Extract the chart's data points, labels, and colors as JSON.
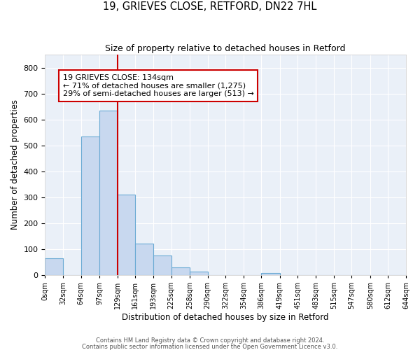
{
  "title": "19, GRIEVES CLOSE, RETFORD, DN22 7HL",
  "subtitle": "Size of property relative to detached houses in Retford",
  "xlabel": "Distribution of detached houses by size in Retford",
  "ylabel": "Number of detached properties",
  "bar_color": "#c8d8ef",
  "bar_edge_color": "#6aaad4",
  "annotation_line_color": "#cc0000",
  "annotation_box_color": "#cc0000",
  "background_color": "#eaf0f8",
  "grid_color": "#ffffff",
  "annotation_text": "19 GRIEVES CLOSE: 134sqm\n← 71% of detached houses are smaller (1,275)\n29% of semi-detached houses are larger (513) →",
  "footer_text1": "Contains HM Land Registry data © Crown copyright and database right 2024.",
  "footer_text2": "Contains public sector information licensed under the Open Government Licence v3.0.",
  "bin_labels": [
    "0sqm",
    "32sqm",
    "64sqm",
    "97sqm",
    "129sqm",
    "161sqm",
    "193sqm",
    "225sqm",
    "258sqm",
    "290sqm",
    "322sqm",
    "354sqm",
    "386sqm",
    "419sqm",
    "451sqm",
    "483sqm",
    "515sqm",
    "547sqm",
    "580sqm",
    "612sqm",
    "644sqm"
  ],
  "bin_edges": [
    0,
    32,
    64,
    97,
    129,
    161,
    193,
    225,
    258,
    290,
    322,
    354,
    386,
    419,
    451,
    483,
    515,
    547,
    580,
    612,
    644
  ],
  "bin_values": [
    65,
    0,
    535,
    635,
    310,
    120,
    75,
    30,
    12,
    0,
    0,
    0,
    8,
    0,
    0,
    0,
    0,
    0,
    0,
    0
  ],
  "ylim": [
    0,
    850
  ],
  "yticks": [
    0,
    100,
    200,
    300,
    400,
    500,
    600,
    700,
    800
  ],
  "vline_x": 129
}
